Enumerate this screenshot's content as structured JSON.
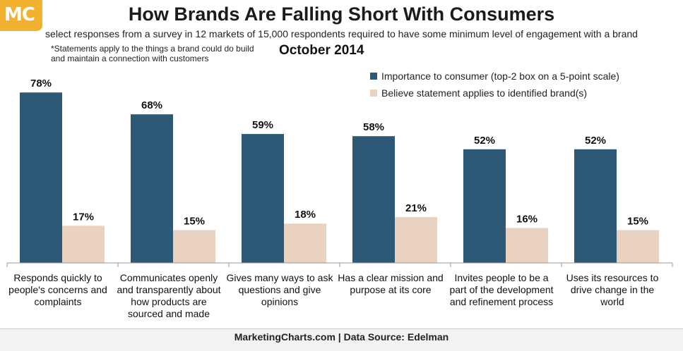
{
  "logo": {
    "text": "MC",
    "color": "#f2b12e"
  },
  "header": {
    "title": "How Brands Are Falling Short With Consumers",
    "subtitle": "select responses from a survey in 12 markets of 15,000 respondents required to have some minimum level of engagement with a brand",
    "date": "October 2014",
    "footnote": "*Statements apply to the things a brand could do build and maintain a connection with customers"
  },
  "footer": {
    "source": "MarketingCharts.com | Data Source: Edelman"
  },
  "colors": {
    "importance": "#2d5876",
    "believe": "#e9d3c0"
  },
  "chart_data": {
    "type": "bar",
    "categories": [
      "Responds quickly to people's concerns and complaints",
      "Communicates openly and transparently about how products are sourced and made",
      "Gives many ways to ask questions and give opinions",
      "Has a clear mission and purpose at its core",
      "Invites people to be a part of the development and refinement process",
      "Uses its resources to drive change in the world"
    ],
    "series": [
      {
        "name": "Importance to consumer (top-2 box on a 5-point scale)",
        "values": [
          78,
          68,
          59,
          58,
          52,
          52
        ],
        "labels": [
          "78%",
          "68%",
          "59%",
          "58%",
          "52%",
          "52%"
        ]
      },
      {
        "name": "Believe statement applies to identified brand(s)",
        "values": [
          17,
          15,
          18,
          21,
          16,
          15
        ],
        "labels": [
          "17%",
          "15%",
          "18%",
          "21%",
          "16%",
          "15%"
        ]
      }
    ],
    "ylim": [
      0,
      100
    ],
    "legend_position": "top-right",
    "grid": false
  }
}
